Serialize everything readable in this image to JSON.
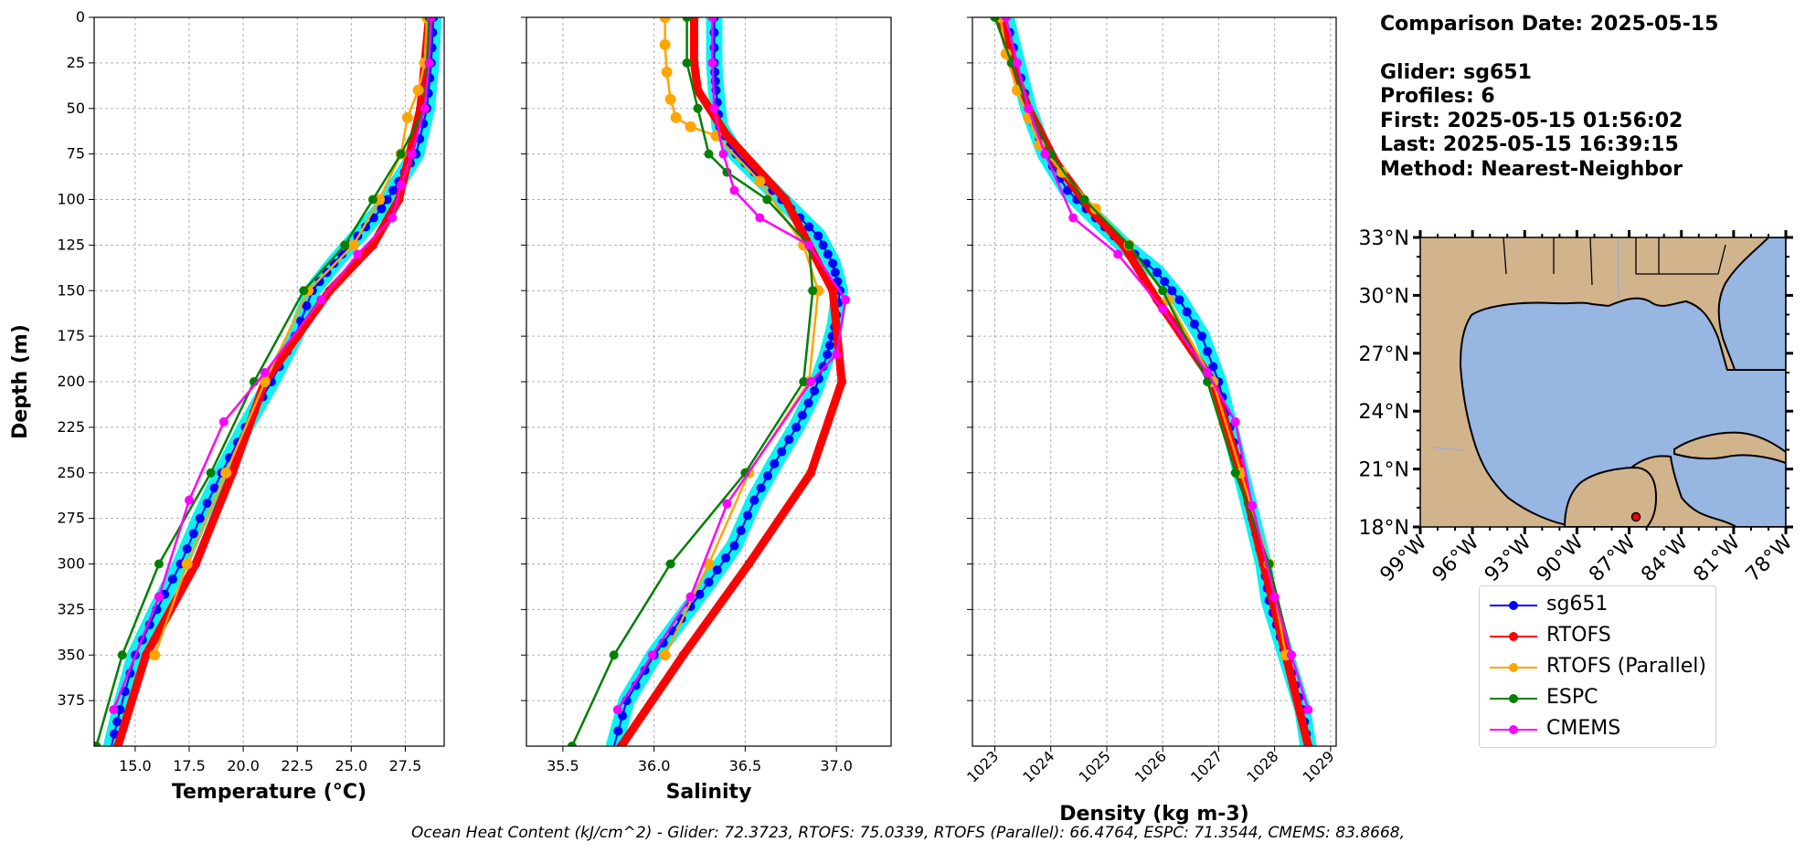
{
  "info": {
    "comparison_date": "Comparison Date: 2025-05-15",
    "glider": "Glider: sg651",
    "profiles": "Profiles: 6",
    "first": "First: 2025-05-15 01:56:02",
    "last": "Last: 2025-05-15 16:39:15",
    "method": "Method: Nearest-Neighbor"
  },
  "legend": [
    {
      "label": "sg651",
      "color": "#0000ff"
    },
    {
      "label": "RTOFS",
      "color": "#ff0000"
    },
    {
      "label": "RTOFS (Parallel)",
      "color": "#ffa500"
    },
    {
      "label": "ESPC",
      "color": "#008000"
    },
    {
      "label": "CMEMS",
      "color": "#ff00ff"
    }
  ],
  "footer": "Ocean Heat Content (kJ/cm^2) - Glider: 72.3723,  RTOFS: 75.0339,  RTOFS (Parallel): 66.4764,  ESPC: 71.3544,  CMEMS: 83.8668,",
  "map": {
    "lat_labels": [
      "33°N",
      "30°N",
      "27°N",
      "24°N",
      "21°N",
      "18°N"
    ],
    "lon_labels": [
      "99°W",
      "96°W",
      "93°W",
      "90°W",
      "87°W",
      "84°W",
      "81°W",
      "78°W"
    ],
    "land_color": "#d2b48c",
    "ocean_color": "#97b6e1",
    "glider_marker_color": "#ff0000"
  },
  "chart_data": [
    {
      "type": "line",
      "xlabel": "Temperature (°C)",
      "ylabel": "Depth (m)",
      "xlim": [
        13.1,
        29.3
      ],
      "ylim": [
        400,
        0
      ],
      "xticks": [
        "15.0",
        "17.5",
        "20.0",
        "22.5",
        "25.0",
        "27.5"
      ],
      "yticks": [
        "0",
        "25",
        "50",
        "75",
        "100",
        "125",
        "150",
        "175",
        "200",
        "225",
        "250",
        "275",
        "300",
        "325",
        "350",
        "375"
      ],
      "grid": true,
      "series": [
        {
          "name": "sg651",
          "color": "#0000ff",
          "style": "glider",
          "x": [
            28.8,
            28.7,
            28.5,
            28.0,
            27.2,
            26.4,
            25.3,
            24.2,
            23.2,
            22.4,
            21.3,
            20.1,
            19.0,
            18.0,
            17.1,
            16.0,
            15.0,
            14.3,
            13.9
          ],
          "y": [
            0,
            25,
            50,
            75,
            90,
            105,
            120,
            135,
            150,
            175,
            200,
            225,
            250,
            275,
            300,
            325,
            350,
            380,
            400
          ]
        },
        {
          "name": "RTOFS",
          "color": "#ff0000",
          "style": "thick",
          "x": [
            28.6,
            28.2,
            27.2,
            26.0,
            24.0,
            22.5,
            21.0,
            19.5,
            17.8,
            15.5,
            14.2
          ],
          "y": [
            0,
            50,
            100,
            125,
            150,
            175,
            200,
            250,
            300,
            350,
            400
          ]
        },
        {
          "name": "RTOFS (Parallel)",
          "color": "#ffa500",
          "style": "dots",
          "x": [
            28.5,
            28.4,
            28.1,
            27.6,
            27.3,
            26.3,
            25.1,
            23.0,
            21.0,
            19.2,
            17.4,
            15.9
          ],
          "y": [
            0,
            25,
            40,
            55,
            75,
            100,
            125,
            150,
            200,
            250,
            300,
            350
          ]
        },
        {
          "name": "ESPC",
          "color": "#008000",
          "style": "line",
          "x": [
            28.6,
            28.4,
            27.3,
            26.0,
            24.7,
            22.8,
            20.5,
            18.5,
            16.1,
            14.4,
            13.2
          ],
          "y": [
            0,
            50,
            75,
            100,
            125,
            150,
            200,
            250,
            300,
            350,
            400
          ]
        },
        {
          "name": "CMEMS",
          "color": "#ff00ff",
          "style": "line",
          "x": [
            28.7,
            28.6,
            28.4,
            27.8,
            27.3,
            26.9,
            25.3,
            23.6,
            21.0,
            19.1,
            17.5,
            16.1,
            14.0
          ],
          "y": [
            0,
            25,
            50,
            75,
            92,
            110,
            130,
            155,
            195,
            222,
            265,
            318,
            380
          ]
        }
      ]
    },
    {
      "type": "line",
      "xlabel": "Salinity",
      "xlim": [
        35.3,
        37.3
      ],
      "ylim": [
        400,
        0
      ],
      "xticks": [
        "35.5",
        "36.0",
        "36.5",
        "37.0"
      ],
      "grid": true,
      "series": [
        {
          "name": "sg651",
          "color": "#0000ff",
          "style": "glider",
          "x": [
            36.33,
            36.33,
            36.34,
            36.36,
            36.45,
            36.6,
            36.75,
            36.9,
            36.98,
            37.02,
            36.99,
            36.95,
            36.88,
            36.78,
            36.66,
            36.55,
            36.44,
            36.3,
            36.15,
            36.0,
            35.85,
            35.78
          ],
          "y": [
            0,
            25,
            40,
            60,
            75,
            90,
            105,
            120,
            135,
            150,
            170,
            185,
            205,
            225,
            245,
            265,
            290,
            310,
            330,
            350,
            375,
            400
          ]
        },
        {
          "name": "RTOFS",
          "color": "#ff0000",
          "style": "thick",
          "x": [
            36.22,
            36.22,
            36.24,
            36.4,
            36.72,
            36.98,
            37.03,
            36.86,
            36.52,
            36.16,
            35.82
          ],
          "y": [
            0,
            25,
            40,
            65,
            100,
            150,
            200,
            250,
            300,
            350,
            400
          ]
        },
        {
          "name": "RTOFS (Parallel)",
          "color": "#ffa500",
          "style": "dots",
          "x": [
            36.06,
            36.06,
            36.07,
            36.09,
            36.12,
            36.2,
            36.34,
            36.58,
            36.82,
            36.9,
            36.85,
            36.52,
            36.3,
            36.06
          ],
          "y": [
            0,
            15,
            30,
            45,
            55,
            60,
            65,
            90,
            125,
            150,
            200,
            250,
            300,
            350
          ]
        },
        {
          "name": "ESPC",
          "color": "#008000",
          "style": "line",
          "x": [
            36.18,
            36.18,
            36.24,
            36.3,
            36.4,
            36.62,
            36.85,
            36.87,
            36.82,
            36.5,
            36.09,
            35.78,
            35.55
          ],
          "y": [
            0,
            25,
            50,
            75,
            85,
            100,
            125,
            150,
            200,
            250,
            300,
            350,
            400
          ]
        },
        {
          "name": "CMEMS",
          "color": "#ff00ff",
          "style": "line",
          "x": [
            36.32,
            36.32,
            36.33,
            36.38,
            36.44,
            36.58,
            36.85,
            37.05,
            37.0,
            36.86,
            36.4,
            36.2,
            35.99,
            35.8
          ],
          "y": [
            0,
            25,
            50,
            75,
            95,
            110,
            125,
            155,
            185,
            200,
            267,
            318,
            350,
            380
          ]
        }
      ]
    },
    {
      "type": "line",
      "xlabel": "Density (kg m-3)",
      "xlim": [
        1022.6,
        1029.1
      ],
      "ylim": [
        400,
        0
      ],
      "xticks": [
        "1023",
        "1024",
        "1025",
        "1026",
        "1027",
        "1028",
        "1029"
      ],
      "grid": true,
      "series": [
        {
          "name": "sg651",
          "color": "#0000ff",
          "style": "glider",
          "x": [
            1023.2,
            1023.4,
            1023.6,
            1023.9,
            1024.3,
            1024.8,
            1025.3,
            1025.9,
            1026.3,
            1026.7,
            1027.0,
            1027.2,
            1027.4,
            1027.6,
            1027.8,
            1027.9,
            1028.1,
            1028.3,
            1028.5,
            1028.6
          ],
          "y": [
            0,
            25,
            50,
            75,
            95,
            110,
            125,
            140,
            155,
            175,
            200,
            225,
            250,
            275,
            300,
            320,
            340,
            360,
            380,
            400
          ]
        },
        {
          "name": "RTOFS",
          "color": "#ff0000",
          "style": "thick",
          "x": [
            1023.1,
            1023.3,
            1023.6,
            1024.1,
            1024.7,
            1025.3,
            1025.9,
            1026.9,
            1027.4,
            1027.8,
            1028.2,
            1028.6
          ],
          "y": [
            0,
            25,
            50,
            80,
            105,
            125,
            155,
            200,
            250,
            300,
            350,
            400
          ]
        },
        {
          "name": "RTOFS (Parallel)",
          "color": "#ffa500",
          "style": "dots",
          "x": [
            1023.1,
            1023.2,
            1023.4,
            1023.6,
            1023.8,
            1024.2,
            1024.8,
            1025.4,
            1026.1,
            1026.9,
            1027.4,
            1027.9,
            1028.2
          ],
          "y": [
            0,
            20,
            40,
            55,
            70,
            85,
            105,
            125,
            155,
            200,
            250,
            300,
            350
          ]
        },
        {
          "name": "ESPC",
          "color": "#008000",
          "style": "line",
          "x": [
            1023.0,
            1023.3,
            1023.6,
            1024.0,
            1024.6,
            1025.4,
            1026.0,
            1026.8,
            1027.3,
            1027.9,
            1028.3
          ],
          "y": [
            0,
            25,
            50,
            75,
            100,
            125,
            150,
            200,
            250,
            300,
            350
          ]
        },
        {
          "name": "CMEMS",
          "color": "#ff00ff",
          "style": "line",
          "x": [
            1023.2,
            1023.4,
            1023.6,
            1023.9,
            1024.4,
            1025.2,
            1026.0,
            1026.8,
            1027.3,
            1027.6,
            1028.0,
            1028.3,
            1028.6
          ],
          "y": [
            0,
            25,
            50,
            75,
            110,
            130,
            160,
            195,
            222,
            268,
            318,
            350,
            380
          ]
        }
      ]
    }
  ]
}
